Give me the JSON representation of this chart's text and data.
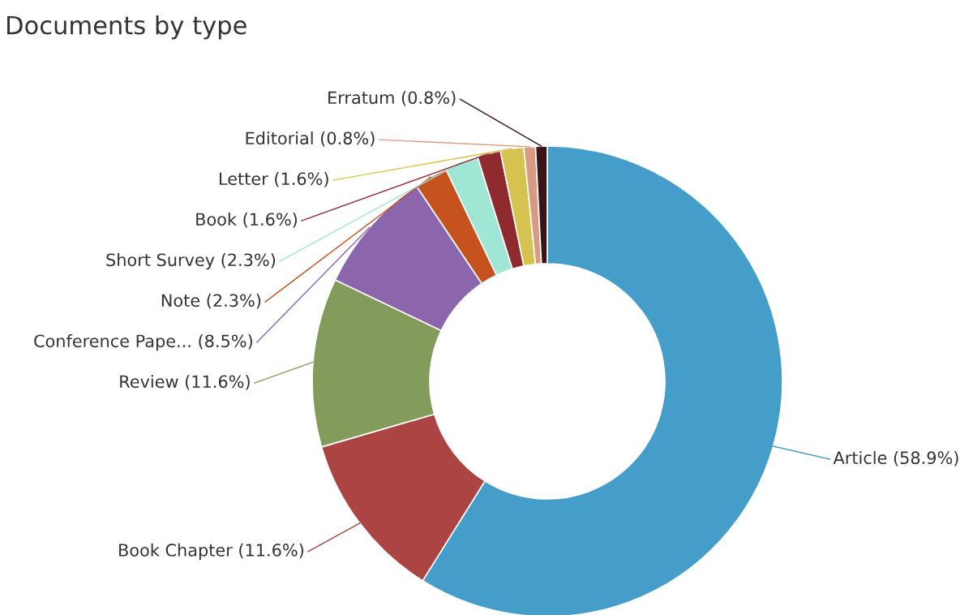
{
  "chart_data": {
    "type": "donut",
    "title": "Documents by type",
    "categories": [
      "Article",
      "Book Chapter",
      "Review",
      "Conference Pape...",
      "Note",
      "Short Survey",
      "Book",
      "Letter",
      "Editorial",
      "Erratum"
    ],
    "values": [
      58.9,
      11.6,
      11.6,
      8.5,
      2.3,
      2.3,
      1.6,
      1.6,
      0.8,
      0.8
    ],
    "value_labels": [
      "(58.9%)",
      "(11.6%)",
      "(11.6%)",
      "(8.5%)",
      "(2.3%)",
      "(2.3%)",
      "(1.6%)",
      "(1.6%)",
      "(0.8%)",
      "(0.8%)"
    ],
    "colors": [
      "#459dca",
      "#ab4442",
      "#839c5c",
      "#8b66ad",
      "#c5521f",
      "#a0e6d4",
      "#8f2a2e",
      "#d6c24e",
      "#d89a80",
      "#3a1518"
    ],
    "legend": false
  }
}
